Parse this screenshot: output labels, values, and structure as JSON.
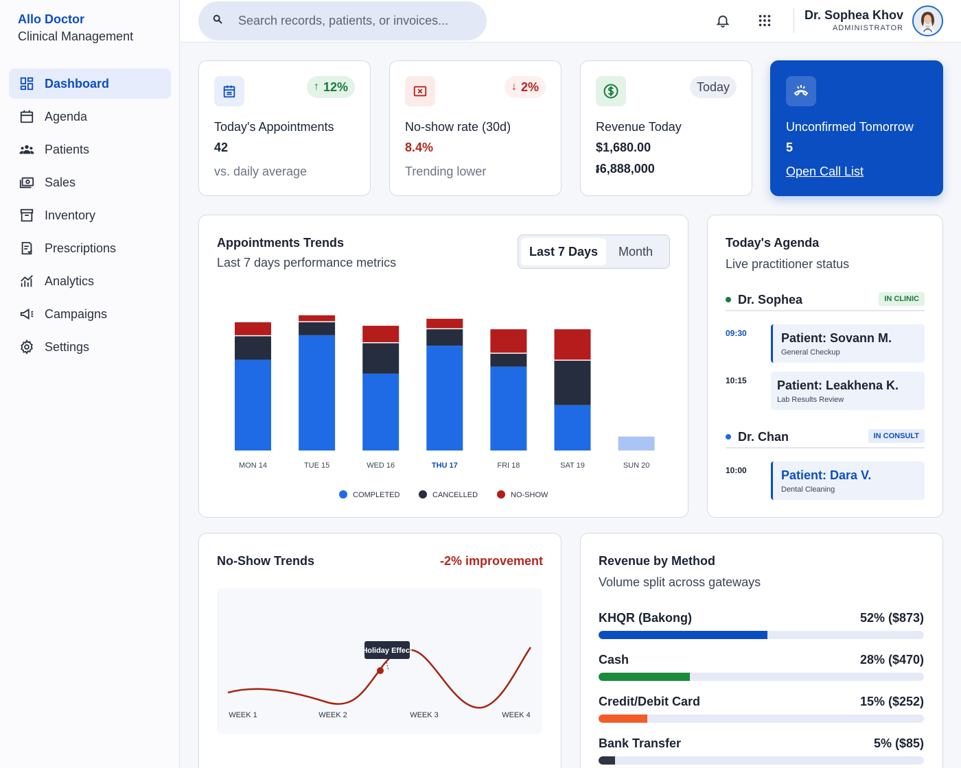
{
  "brand": {
    "name": "Allo Doctor",
    "subtitle": "Clinical Management"
  },
  "sidebar": {
    "items": [
      {
        "label": "Dashboard",
        "icon": "dashboard-icon",
        "active": true
      },
      {
        "label": "Agenda",
        "icon": "calendar-icon"
      },
      {
        "label": "Patients",
        "icon": "people-icon"
      },
      {
        "label": "Sales",
        "icon": "cash-icon"
      },
      {
        "label": "Inventory",
        "icon": "archive-icon"
      },
      {
        "label": "Prescriptions",
        "icon": "prescription-icon"
      },
      {
        "label": "Analytics",
        "icon": "analytics-icon"
      },
      {
        "label": "Campaigns",
        "icon": "megaphone-icon"
      },
      {
        "label": "Settings",
        "icon": "gear-icon"
      }
    ]
  },
  "topbar": {
    "search_placeholder": "Search records, patients, or invoices...",
    "user_name": "Dr. Sophea Khov",
    "user_role": "ADMINISTRATOR"
  },
  "kpis": [
    {
      "label": "Today's Appointments",
      "value": "42",
      "sub": "vs. daily average",
      "badge": "12%",
      "badge_dir": "up",
      "icon": "calendar-icon",
      "color": "#1a7a3c"
    },
    {
      "label": "No-show rate (30d)",
      "value": "8.4%",
      "sub": "Trending lower",
      "badge": "2%",
      "badge_dir": "down",
      "icon": "x-square-icon",
      "color": "#b3261e"
    },
    {
      "label": "Revenue Today",
      "value": "$1,680.00",
      "sub": "៛6,888,000",
      "badge": "Today",
      "icon": "dollar-icon",
      "color": "#1a7a3c"
    },
    {
      "label": "Unconfirmed Tomorrow",
      "value": "5",
      "link": "Open Call List",
      "icon": "phone-missed-icon",
      "color": "#0b4ec2"
    }
  ],
  "trends": {
    "title": "Appointments Trends",
    "subtitle": "Last 7 days performance metrics",
    "tabs": [
      "Last 7 Days",
      "Month"
    ],
    "active_tab": "Last 7 Days"
  },
  "chart_data": [
    {
      "type": "bar",
      "stacked": true,
      "categories": [
        "MON 14",
        "TUE 15",
        "WED 16",
        "THU 17",
        "FRI 18",
        "SAT 19",
        "SUN 20"
      ],
      "highlight": "THU 17",
      "series": [
        {
          "name": "COMPLETED",
          "color": "#1f6be6",
          "values": [
            26,
            33,
            22,
            30,
            24,
            13,
            4
          ]
        },
        {
          "name": "CANCELLED",
          "color": "#262d3e",
          "values": [
            7,
            4,
            9,
            5,
            4,
            13,
            0
          ]
        },
        {
          "name": "NO-SHOW",
          "color": "#b51c1c",
          "values": [
            4,
            2,
            5,
            3,
            7,
            9,
            0
          ]
        }
      ],
      "ylim": [
        0,
        42
      ]
    },
    {
      "type": "line",
      "x": [
        "WEEK 1",
        "WEEK 2",
        "WEEK 3",
        "WEEK 4"
      ],
      "annotation": "Holiday Effect",
      "color": "#a8240f"
    }
  ],
  "agenda": {
    "title": "Today's Agenda",
    "subtitle": "Live practitioner status",
    "doctors": [
      {
        "name": "Dr. Sophea",
        "status": "IN CLINIC",
        "dot": "#1a7a3c",
        "appointments": [
          {
            "time": "09:30",
            "patient": "Patient: Sovann M.",
            "type": "General Checkup",
            "current": true
          },
          {
            "time": "10:15",
            "patient": "Patient: Leakhena K.",
            "type": "Lab Results Review",
            "current": false
          }
        ]
      },
      {
        "name": "Dr. Chan",
        "status": "IN CONSULT",
        "dot": "#1f6be6",
        "appointments": [
          {
            "time": "10:00",
            "patient": "Patient: Dara V.",
            "type": "Dental Cleaning",
            "current": true
          }
        ]
      }
    ]
  },
  "noshow": {
    "title": "No-Show Trends",
    "improvement": "-2% improvement"
  },
  "revenue": {
    "title": "Revenue by Method",
    "subtitle": "Volume split across gateways",
    "methods": [
      {
        "label": "KHQR (Bakong)",
        "value": "52% ($873)",
        "share": 0.52,
        "color": "#0b4ec2"
      },
      {
        "label": "Cash",
        "value": "28% ($470)",
        "share": 0.28,
        "color": "#1a8a3c"
      },
      {
        "label": "Credit/Debit Card",
        "value": "15% ($252)",
        "share": 0.15,
        "color": "#f25c26"
      },
      {
        "label": "Bank Transfer",
        "value": "5% ($85)",
        "share": 0.05,
        "color": "#2f3544"
      }
    ]
  }
}
